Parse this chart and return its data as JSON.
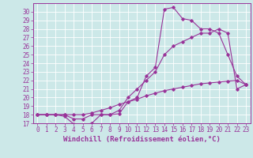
{
  "xlabel": "Windchill (Refroidissement éolien,°C)",
  "background_color": "#cce8e8",
  "line_color": "#993399",
  "grid_color": "#ffffff",
  "x_values": [
    0,
    1,
    2,
    3,
    4,
    5,
    6,
    7,
    8,
    9,
    10,
    11,
    12,
    13,
    14,
    15,
    16,
    17,
    18,
    19,
    20,
    21,
    22,
    23
  ],
  "line1": [
    18.0,
    18.0,
    18.0,
    17.8,
    16.9,
    16.8,
    17.0,
    18.0,
    18.0,
    18.1,
    19.5,
    20.0,
    22.5,
    23.5,
    30.3,
    30.5,
    29.2,
    29.0,
    28.0,
    28.0,
    27.5,
    25.0,
    22.5,
    21.5
  ],
  "line2": [
    18.0,
    18.0,
    18.0,
    18.0,
    17.5,
    17.5,
    18.0,
    18.0,
    18.0,
    18.5,
    20.0,
    21.0,
    22.0,
    23.0,
    25.0,
    26.0,
    26.5,
    27.0,
    27.5,
    27.5,
    28.0,
    27.5,
    21.0,
    21.5
  ],
  "line3": [
    18.0,
    18.0,
    18.0,
    18.0,
    18.0,
    18.0,
    18.2,
    18.5,
    18.8,
    19.2,
    19.5,
    19.8,
    20.2,
    20.5,
    20.8,
    21.0,
    21.2,
    21.4,
    21.6,
    21.7,
    21.8,
    21.9,
    22.0,
    21.5
  ],
  "ylim": [
    17,
    31
  ],
  "xlim": [
    -0.5,
    23.5
  ],
  "yticks": [
    17,
    18,
    19,
    20,
    21,
    22,
    23,
    24,
    25,
    26,
    27,
    28,
    29,
    30
  ],
  "xticks": [
    0,
    1,
    2,
    3,
    4,
    5,
    6,
    7,
    8,
    9,
    10,
    11,
    12,
    13,
    14,
    15,
    16,
    17,
    18,
    19,
    20,
    21,
    22,
    23
  ],
  "tick_fontsize": 5.5,
  "label_fontsize": 6.5,
  "marker_size": 1.8,
  "line_width": 0.8
}
